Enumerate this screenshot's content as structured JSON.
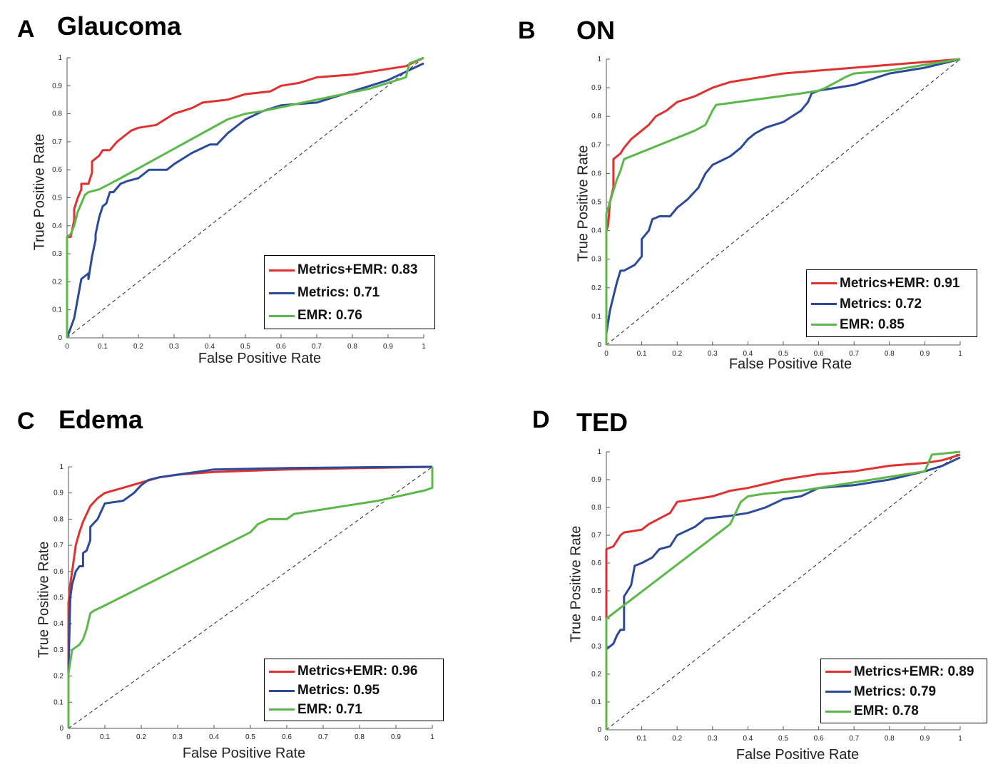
{
  "colors": {
    "metrics_emr": "#e03131",
    "metrics": "#2b4a9a",
    "emr": "#5cb84a"
  },
  "chart_data": [
    {
      "type": "line",
      "letter": "A",
      "title": "Glaucoma",
      "xlabel": "False Positive Rate",
      "ylabel": "True Positive Rate",
      "xlim": [
        0,
        1
      ],
      "ylim": [
        0,
        1
      ],
      "ticks": [
        "0",
        "0.1",
        "0.2",
        "0.3",
        "0.4",
        "0.5",
        "0.6",
        "0.7",
        "0.8",
        "0.9",
        "1"
      ],
      "legend_position": "bottom-right",
      "diagonal": true,
      "series": [
        {
          "name": "Metrics+EMR: 0.83",
          "color": "metrics_emr",
          "x": [
            0,
            0,
            0.01,
            0.02,
            0.02,
            0.03,
            0.03,
            0.04,
            0.04,
            0.06,
            0.07,
            0.07,
            0.09,
            0.1,
            0.12,
            0.14,
            0.16,
            0.18,
            0.2,
            0.25,
            0.3,
            0.35,
            0.38,
            0.45,
            0.5,
            0.57,
            0.6,
            0.65,
            0.7,
            0.8,
            0.9,
            0.95,
            1
          ],
          "y": [
            0,
            0.36,
            0.36,
            0.42,
            0.46,
            0.5,
            0.5,
            0.53,
            0.55,
            0.55,
            0.59,
            0.63,
            0.65,
            0.67,
            0.67,
            0.7,
            0.72,
            0.74,
            0.75,
            0.76,
            0.8,
            0.82,
            0.84,
            0.85,
            0.87,
            0.88,
            0.9,
            0.91,
            0.93,
            0.94,
            0.96,
            0.97,
            1
          ]
        },
        {
          "name": "Metrics: 0.71",
          "color": "metrics",
          "x": [
            0,
            0,
            0.02,
            0.03,
            0.04,
            0.05,
            0.06,
            0.06,
            0.07,
            0.08,
            0.08,
            0.09,
            0.1,
            0.11,
            0.12,
            0.13,
            0.15,
            0.17,
            0.2,
            0.23,
            0.25,
            0.28,
            0.3,
            0.35,
            0.4,
            0.42,
            0.45,
            0.5,
            0.55,
            0.6,
            0.7,
            0.8,
            0.9,
            0.95,
            1
          ],
          "y": [
            0,
            0,
            0.07,
            0.14,
            0.21,
            0.22,
            0.23,
            0.21,
            0.29,
            0.35,
            0.37,
            0.43,
            0.47,
            0.48,
            0.52,
            0.52,
            0.55,
            0.56,
            0.57,
            0.6,
            0.6,
            0.6,
            0.62,
            0.66,
            0.69,
            0.69,
            0.73,
            0.78,
            0.81,
            0.83,
            0.84,
            0.88,
            0.92,
            0.95,
            0.98
          ]
        },
        {
          "name": "EMR: 0.76",
          "color": "emr",
          "x": [
            0,
            0,
            0.01,
            0.02,
            0.03,
            0.04,
            0.05,
            0.06,
            0.09,
            0.12,
            0.15,
            0.45,
            0.5,
            0.55,
            0.7,
            0.85,
            0.95,
            0.96,
            1
          ],
          "y": [
            0,
            0.36,
            0.37,
            0.4,
            0.45,
            0.48,
            0.51,
            0.52,
            0.53,
            0.55,
            0.57,
            0.78,
            0.8,
            0.81,
            0.85,
            0.89,
            0.93,
            0.98,
            1
          ]
        }
      ]
    },
    {
      "type": "line",
      "letter": "B",
      "title": "ON",
      "xlabel": "False Positive Rate",
      "ylabel": "True Positive Rate",
      "xlim": [
        0,
        1
      ],
      "ylim": [
        0,
        1
      ],
      "ticks": [
        "0",
        "0.1",
        "0.2",
        "0.3",
        "0.4",
        "0.5",
        "0.6",
        "0.7",
        "0.8",
        "0.9",
        "1"
      ],
      "legend_position": "bottom-right",
      "diagonal": true,
      "series": [
        {
          "name": "Metrics+EMR: 0.91",
          "color": "metrics_emr",
          "x": [
            0,
            0,
            0.005,
            0.01,
            0.02,
            0.02,
            0.03,
            0.04,
            0.05,
            0.07,
            0.08,
            0.1,
            0.12,
            0.14,
            0.17,
            0.2,
            0.25,
            0.3,
            0.35,
            0.4,
            0.5,
            0.6,
            0.7,
            0.8,
            0.9,
            1
          ],
          "y": [
            0,
            0.4,
            0.42,
            0.5,
            0.55,
            0.65,
            0.66,
            0.67,
            0.69,
            0.72,
            0.73,
            0.75,
            0.77,
            0.8,
            0.82,
            0.85,
            0.87,
            0.9,
            0.92,
            0.93,
            0.95,
            0.96,
            0.97,
            0.98,
            0.99,
            1
          ]
        },
        {
          "name": "Metrics: 0.72",
          "color": "metrics",
          "x": [
            0,
            0,
            0.01,
            0.02,
            0.03,
            0.04,
            0.05,
            0.08,
            0.1,
            0.1,
            0.12,
            0.13,
            0.15,
            0.18,
            0.2,
            0.23,
            0.26,
            0.28,
            0.3,
            0.35,
            0.38,
            0.4,
            0.42,
            0.45,
            0.5,
            0.55,
            0.57,
            0.58,
            0.6,
            0.65,
            0.7,
            0.75,
            0.8,
            0.9,
            1
          ],
          "y": [
            0,
            0.04,
            0.12,
            0.17,
            0.22,
            0.26,
            0.26,
            0.28,
            0.31,
            0.37,
            0.4,
            0.44,
            0.45,
            0.45,
            0.48,
            0.51,
            0.55,
            0.6,
            0.63,
            0.66,
            0.69,
            0.72,
            0.74,
            0.76,
            0.78,
            0.82,
            0.85,
            0.88,
            0.89,
            0.9,
            0.91,
            0.93,
            0.95,
            0.97,
            1
          ]
        },
        {
          "name": "EMR: 0.85",
          "color": "emr",
          "x": [
            0,
            0,
            0.01,
            0.02,
            0.03,
            0.04,
            0.05,
            0.25,
            0.28,
            0.3,
            0.31,
            0.55,
            0.6,
            0.62,
            0.65,
            0.68,
            0.7,
            0.8,
            0.9,
            1
          ],
          "y": [
            0,
            0.46,
            0.5,
            0.54,
            0.58,
            0.61,
            0.65,
            0.75,
            0.77,
            0.82,
            0.84,
            0.88,
            0.89,
            0.9,
            0.92,
            0.94,
            0.95,
            0.96,
            0.98,
            1
          ]
        }
      ]
    },
    {
      "type": "line",
      "letter": "C",
      "title": "Edema",
      "xlabel": "False Positive Rate",
      "ylabel": "True Positive Rate",
      "xlim": [
        0,
        1
      ],
      "ylim": [
        0,
        1
      ],
      "ticks": [
        "0",
        "0.1",
        "0.2",
        "0.3",
        "0.4",
        "0.5",
        "0.6",
        "0.7",
        "0.8",
        "0.9",
        "1"
      ],
      "legend_position": "bottom-right",
      "diagonal": true,
      "series": [
        {
          "name": "Metrics+EMR: 0.96",
          "color": "metrics_emr",
          "x": [
            0,
            0,
            0.005,
            0.01,
            0.015,
            0.02,
            0.03,
            0.04,
            0.05,
            0.06,
            0.08,
            0.1,
            0.15,
            0.2,
            0.25,
            0.3,
            0.4,
            0.6,
            0.8,
            1
          ],
          "y": [
            0,
            0.48,
            0.55,
            0.6,
            0.65,
            0.7,
            0.75,
            0.79,
            0.82,
            0.85,
            0.88,
            0.9,
            0.92,
            0.94,
            0.96,
            0.97,
            0.98,
            0.99,
            0.995,
            1
          ]
        },
        {
          "name": "Metrics: 0.95",
          "color": "metrics",
          "x": [
            0,
            0,
            0.005,
            0.01,
            0.02,
            0.03,
            0.04,
            0.04,
            0.05,
            0.06,
            0.06,
            0.08,
            0.1,
            0.15,
            0.18,
            0.2,
            0.22,
            0.25,
            0.3,
            0.35,
            0.4,
            0.6,
            0.8,
            1
          ],
          "y": [
            0,
            0.22,
            0.5,
            0.55,
            0.6,
            0.62,
            0.62,
            0.67,
            0.68,
            0.72,
            0.77,
            0.8,
            0.86,
            0.87,
            0.9,
            0.93,
            0.95,
            0.96,
            0.97,
            0.98,
            0.99,
            0.995,
            0.998,
            1
          ]
        },
        {
          "name": "EMR: 0.71",
          "color": "emr",
          "x": [
            0,
            0,
            0.01,
            0.02,
            0.03,
            0.04,
            0.05,
            0.06,
            0.07,
            0.1,
            0.5,
            0.52,
            0.55,
            0.6,
            0.62,
            0.85,
            0.98,
            1,
            1
          ],
          "y": [
            0,
            0.21,
            0.3,
            0.31,
            0.32,
            0.34,
            0.38,
            0.44,
            0.45,
            0.47,
            0.75,
            0.78,
            0.8,
            0.8,
            0.82,
            0.87,
            0.91,
            0.92,
            1
          ]
        }
      ]
    },
    {
      "type": "line",
      "letter": "D",
      "title": "TED",
      "xlabel": "False Positive Rate",
      "ylabel": "True Positive Rate",
      "xlim": [
        0,
        1
      ],
      "ylim": [
        0,
        1
      ],
      "ticks": [
        "0",
        "0.1",
        "0.2",
        "0.3",
        "0.4",
        "0.5",
        "0.6",
        "0.7",
        "0.8",
        "0.9",
        "1"
      ],
      "legend_position": "bottom-right",
      "diagonal": true,
      "series": [
        {
          "name": "Metrics+EMR: 0.89",
          "color": "metrics_emr",
          "x": [
            0,
            0,
            0.02,
            0.03,
            0.04,
            0.05,
            0.1,
            0.12,
            0.15,
            0.18,
            0.2,
            0.25,
            0.3,
            0.35,
            0.4,
            0.5,
            0.6,
            0.7,
            0.8,
            0.9,
            0.95,
            1
          ],
          "y": [
            0,
            0.65,
            0.66,
            0.68,
            0.7,
            0.71,
            0.72,
            0.74,
            0.76,
            0.78,
            0.82,
            0.83,
            0.84,
            0.86,
            0.87,
            0.9,
            0.92,
            0.93,
            0.95,
            0.96,
            0.97,
            0.99
          ]
        },
        {
          "name": "Metrics: 0.79",
          "color": "metrics",
          "x": [
            0,
            0,
            0.01,
            0.02,
            0.03,
            0.04,
            0.05,
            0.05,
            0.06,
            0.07,
            0.08,
            0.1,
            0.13,
            0.15,
            0.18,
            0.2,
            0.25,
            0.28,
            0.35,
            0.4,
            0.45,
            0.5,
            0.55,
            0.6,
            0.7,
            0.8,
            0.9,
            0.95,
            1
          ],
          "y": [
            0,
            0.29,
            0.3,
            0.31,
            0.34,
            0.36,
            0.36,
            0.48,
            0.5,
            0.52,
            0.59,
            0.6,
            0.62,
            0.65,
            0.66,
            0.7,
            0.73,
            0.76,
            0.77,
            0.78,
            0.8,
            0.83,
            0.84,
            0.87,
            0.88,
            0.9,
            0.93,
            0.95,
            0.98
          ]
        },
        {
          "name": "EMR: 0.78",
          "color": "emr",
          "x": [
            0,
            0,
            0.35,
            0.38,
            0.4,
            0.45,
            0.55,
            0.7,
            0.9,
            0.92,
            1
          ],
          "y": [
            0,
            0.4,
            0.74,
            0.82,
            0.84,
            0.85,
            0.86,
            0.89,
            0.93,
            0.99,
            1
          ]
        }
      ]
    }
  ]
}
